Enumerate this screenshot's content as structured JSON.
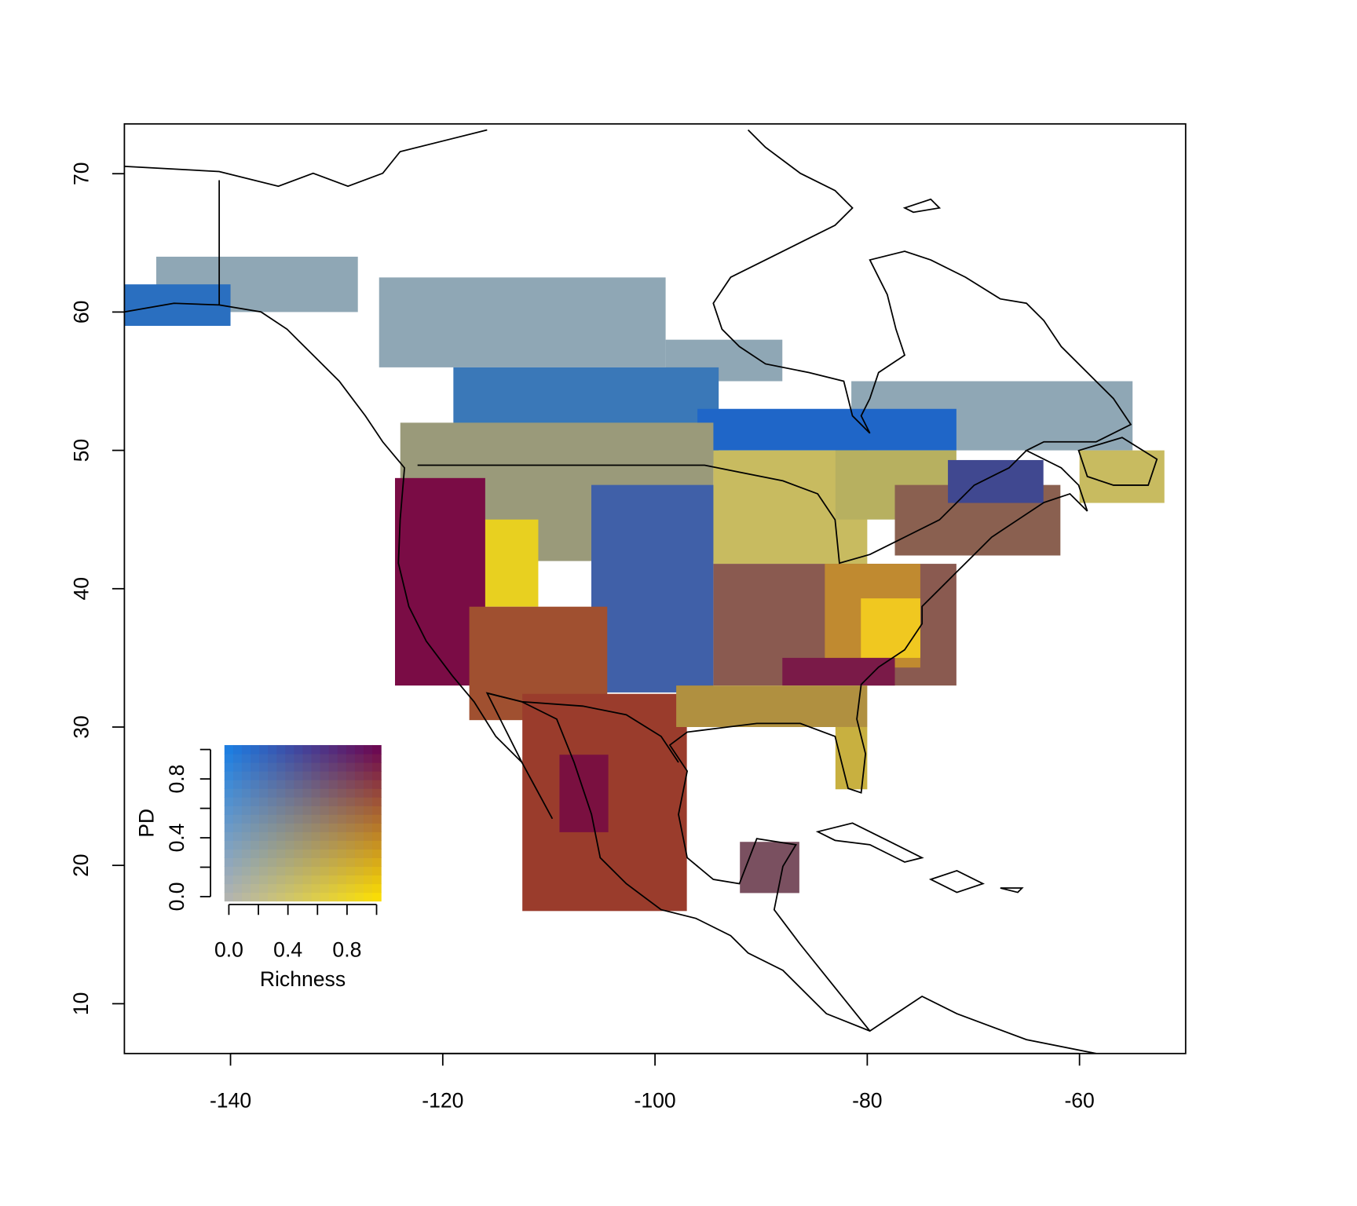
{
  "chart_data": {
    "type": "raster_map",
    "xlim": [
      -150,
      -50
    ],
    "ylim": [
      6.4,
      73.6
    ],
    "xticks": [
      -140,
      -120,
      -100,
      -80,
      -60
    ],
    "yticks": [
      10,
      20,
      30,
      40,
      50,
      60,
      70
    ],
    "cells": [
      {
        "lon": [
          -147,
          -128
        ],
        "lat": [
          60,
          64
        ],
        "color": "#8fa7b5"
      },
      {
        "lon": [
          -126,
          -99
        ],
        "lat": [
          56,
          62.5
        ],
        "color": "#8fa7b5"
      },
      {
        "lon": [
          -99,
          -88
        ],
        "lat": [
          55,
          58
        ],
        "color": "#8fa7b5"
      },
      {
        "lon": [
          -81.5,
          -55
        ],
        "lat": [
          50,
          55
        ],
        "color": "#8fa7b5"
      },
      {
        "lon": [
          -150,
          -140
        ],
        "lat": [
          59,
          62
        ],
        "color": "#2a6fc0"
      },
      {
        "lon": [
          -119,
          -94
        ],
        "lat": [
          49,
          56
        ],
        "color": "#3a78b8"
      },
      {
        "lon": [
          -96,
          -71.6
        ],
        "lat": [
          50,
          53
        ],
        "color": "#1f66c8"
      },
      {
        "lon": [
          -124,
          -94.5
        ],
        "lat": [
          42,
          52
        ],
        "color": "#9a9a7a"
      },
      {
        "lon": [
          -94.5,
          -80
        ],
        "lat": [
          41.8,
          50
        ],
        "color": "#c8bb60"
      },
      {
        "lon": [
          -83,
          -71.6
        ],
        "lat": [
          45,
          50
        ],
        "color": "#b7b060"
      },
      {
        "lon": [
          -119,
          -111
        ],
        "lat": [
          38.7,
          45
        ],
        "color": "#e8d020"
      },
      {
        "lon": [
          -106,
          -94.5
        ],
        "lat": [
          32.5,
          47.5
        ],
        "color": "#4060a8"
      },
      {
        "lon": [
          -124.5,
          -116
        ],
        "lat": [
          33,
          48
        ],
        "color": "#7a0c45"
      },
      {
        "lon": [
          -117.5,
          -104.5
        ],
        "lat": [
          30.5,
          38.7
        ],
        "color": "#a05030"
      },
      {
        "lon": [
          -112.5,
          -97
        ],
        "lat": [
          16.7,
          32.4
        ],
        "color": "#9a3c2c"
      },
      {
        "lon": [
          -109,
          -104.4
        ],
        "lat": [
          22.4,
          28
        ],
        "color": "#7a1040"
      },
      {
        "lon": [
          -94.5,
          -71.6
        ],
        "lat": [
          33,
          41.8
        ],
        "color": "#8a5a50"
      },
      {
        "lon": [
          -84,
          -75
        ],
        "lat": [
          34.3,
          41.8
        ],
        "color": "#c08a30"
      },
      {
        "lon": [
          -80.6,
          -75
        ],
        "lat": [
          35,
          39.3
        ],
        "color": "#f0c820"
      },
      {
        "lon": [
          -88,
          -77.4
        ],
        "lat": [
          33,
          35
        ],
        "color": "#7a1a48"
      },
      {
        "lon": [
          -98,
          -80
        ],
        "lat": [
          30,
          33
        ],
        "color": "#b09040"
      },
      {
        "lon": [
          -83,
          -80
        ],
        "lat": [
          25.5,
          30
        ],
        "color": "#c8b040"
      },
      {
        "lon": [
          -77.4,
          -61.8
        ],
        "lat": [
          42.4,
          47.5
        ],
        "color": "#8a6050"
      },
      {
        "lon": [
          -72.4,
          -63.4
        ],
        "lat": [
          46.2,
          49.3
        ],
        "color": "#404890"
      },
      {
        "lon": [
          -60,
          -52
        ],
        "lat": [
          46.2,
          50
        ],
        "color": "#c8bb60"
      },
      {
        "lon": [
          -92,
          -86.4
        ],
        "lat": [
          18,
          21.7
        ],
        "color": "#7a5060"
      }
    ],
    "legend": {
      "xlabel": "Richness",
      "ylabel": "PD",
      "xlim": [
        -0.03,
        1.03
      ],
      "ylim": [
        -0.03,
        1.03
      ],
      "xticks": [
        {
          "value": 0,
          "label": "0.0"
        },
        {
          "value": 0.4,
          "label": "0.4"
        },
        {
          "value": 0.8,
          "label": "0.8"
        }
      ],
      "yticks": [
        {
          "value": 0,
          "label": "0.0"
        },
        {
          "value": 0.4,
          "label": "0.4"
        },
        {
          "value": 0.8,
          "label": "0.8"
        }
      ],
      "minor_ticks": [
        0.2,
        0.6,
        1
      ],
      "corners": {
        "low_low": "#b4b4b4",
        "high_low": "#ffe400",
        "low_high": "#1780e6",
        "high_high": "#6a0050"
      }
    }
  }
}
